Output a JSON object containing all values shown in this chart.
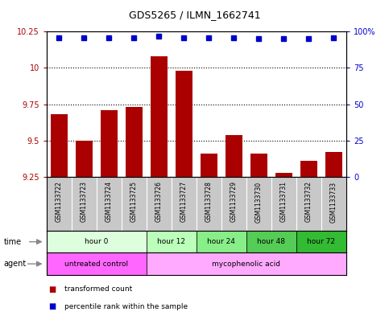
{
  "title": "GDS5265 / ILMN_1662741",
  "samples": [
    "GSM1133722",
    "GSM1133723",
    "GSM1133724",
    "GSM1133725",
    "GSM1133726",
    "GSM1133727",
    "GSM1133728",
    "GSM1133729",
    "GSM1133730",
    "GSM1133731",
    "GSM1133732",
    "GSM1133733"
  ],
  "bar_values": [
    9.68,
    9.5,
    9.71,
    9.73,
    10.08,
    9.98,
    9.41,
    9.54,
    9.41,
    9.28,
    9.36,
    9.42
  ],
  "dot_values": [
    96,
    96,
    96,
    96,
    97,
    96,
    96,
    96,
    95,
    95,
    95,
    96
  ],
  "bar_color": "#aa0000",
  "dot_color": "#0000cc",
  "ylim_left": [
    9.25,
    10.25
  ],
  "ylim_right": [
    0,
    100
  ],
  "yticks_left": [
    9.25,
    9.5,
    9.75,
    10.0,
    10.25
  ],
  "yticks_right": [
    0,
    25,
    50,
    75,
    100
  ],
  "ytick_labels_left": [
    "9.25",
    "9.5",
    "9.75",
    "10",
    "10.25"
  ],
  "ytick_labels_right": [
    "0",
    "25",
    "50",
    "75",
    "100%"
  ],
  "dotted_lines": [
    9.5,
    9.75,
    10.0
  ],
  "time_groups": [
    {
      "label": "hour 0",
      "start": 0,
      "end": 4,
      "color": "#ddffdd"
    },
    {
      "label": "hour 12",
      "start": 4,
      "end": 6,
      "color": "#bbffbb"
    },
    {
      "label": "hour 24",
      "start": 6,
      "end": 8,
      "color": "#88ee88"
    },
    {
      "label": "hour 48",
      "start": 8,
      "end": 10,
      "color": "#55cc55"
    },
    {
      "label": "hour 72",
      "start": 10,
      "end": 12,
      "color": "#33bb33"
    }
  ],
  "agent_groups": [
    {
      "label": "untreated control",
      "start": 0,
      "end": 4,
      "color": "#ff66ff"
    },
    {
      "label": "mycophenolic acid",
      "start": 4,
      "end": 12,
      "color": "#ffaaff"
    }
  ],
  "legend_items": [
    {
      "label": "transformed count",
      "color": "#aa0000"
    },
    {
      "label": "percentile rank within the sample",
      "color": "#0000cc"
    }
  ],
  "background_color": "#ffffff",
  "plot_bg_color": "#ffffff",
  "sample_bg_color": "#c8c8c8"
}
